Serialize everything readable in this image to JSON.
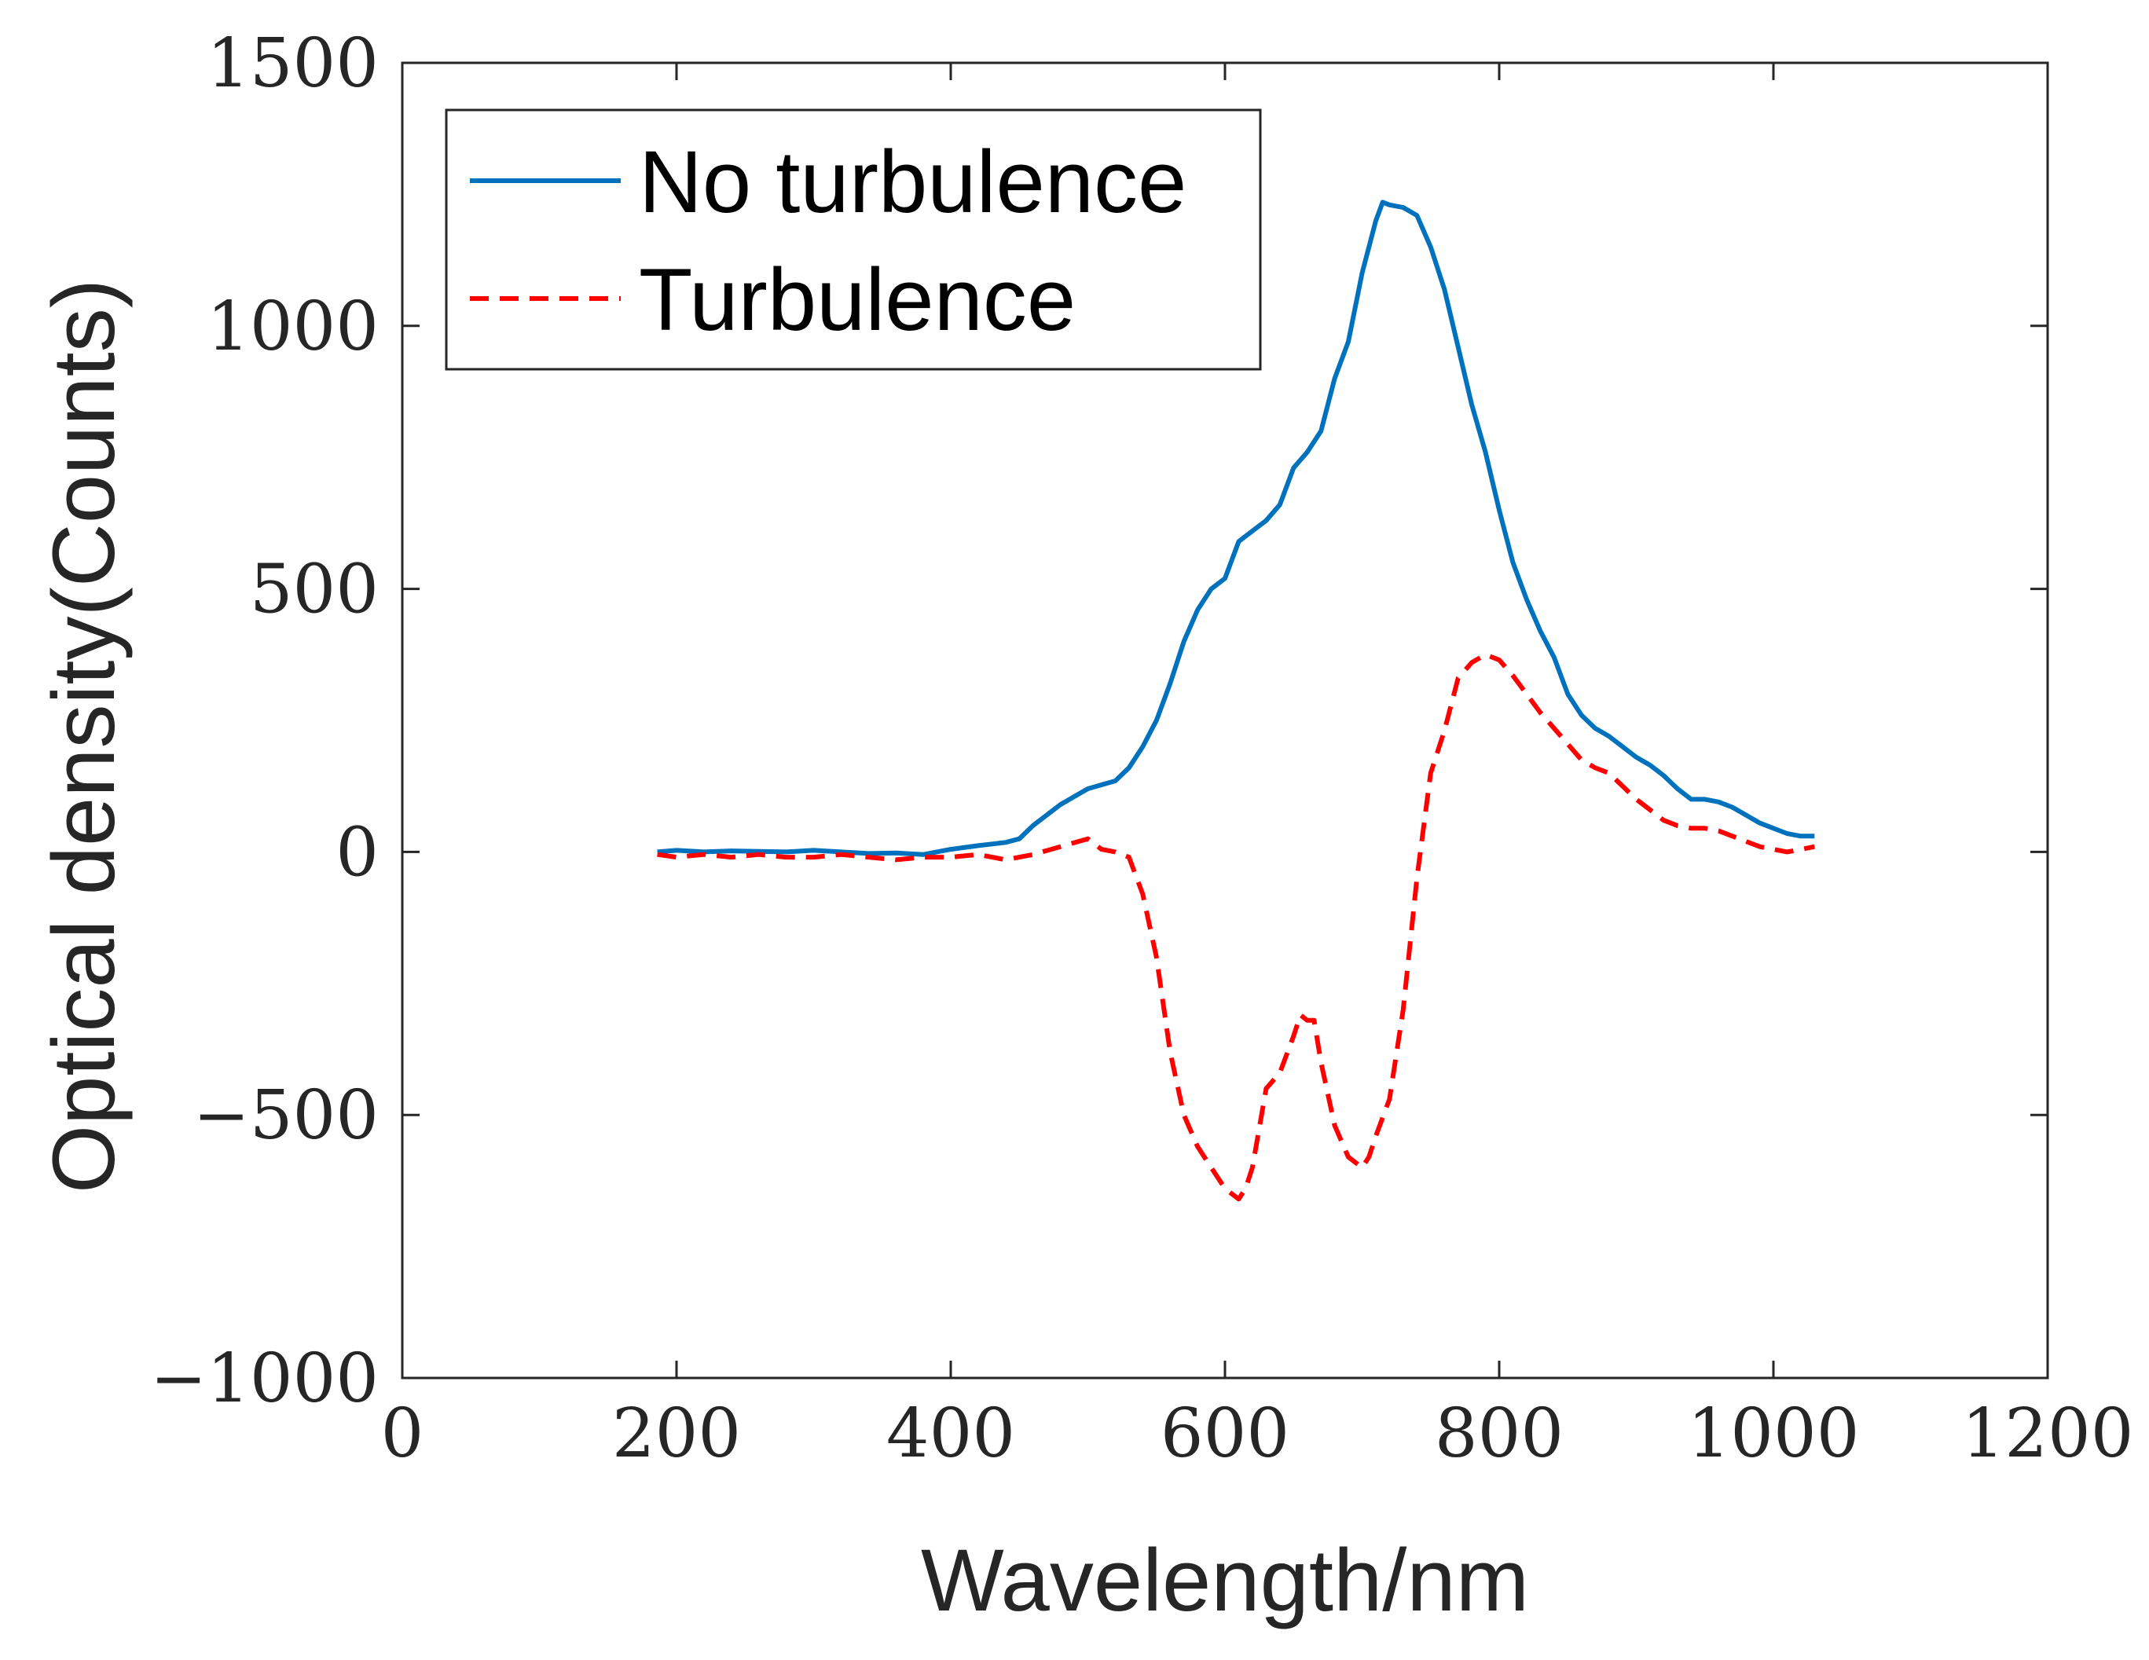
{
  "chart_data": {
    "type": "line",
    "title": "",
    "xlabel": "Wavelength/nm",
    "ylabel": "Optical density(Counts)",
    "xlim": [
      0,
      1200
    ],
    "ylim": [
      -1000,
      1500
    ],
    "xticks": [
      0,
      200,
      400,
      600,
      800,
      1000,
      1200
    ],
    "xtick_labels": [
      "0",
      "200",
      "400",
      "600",
      "800",
      "1000",
      "1200"
    ],
    "yticks": [
      -1000,
      -500,
      0,
      500,
      1000,
      1500
    ],
    "ytick_labels": [
      "−1000",
      "−500",
      "0",
      "500",
      "1000",
      "1500"
    ],
    "grid": false,
    "legend_position": "top-left",
    "series": [
      {
        "name": "No turbulence",
        "color": "#0072BD",
        "style": "solid",
        "x": [
          186,
          200,
          220,
          240,
          260,
          280,
          300,
          320,
          340,
          360,
          380,
          400,
          420,
          440,
          450,
          460,
          480,
          500,
          520,
          530,
          540,
          550,
          560,
          570,
          580,
          590,
          600,
          610,
          620,
          630,
          640,
          650,
          660,
          670,
          680,
          690,
          700,
          710,
          715,
          720,
          730,
          740,
          750,
          760,
          770,
          780,
          790,
          800,
          810,
          820,
          830,
          840,
          850,
          860,
          870,
          880,
          890,
          900,
          910,
          920,
          930,
          940,
          950,
          960,
          970,
          980,
          990,
          1000,
          1010,
          1020,
          1030
        ],
        "values": [
          0,
          3,
          0,
          2,
          1,
          0,
          3,
          0,
          -3,
          -2,
          -5,
          5,
          12,
          18,
          25,
          50,
          90,
          120,
          135,
          160,
          200,
          250,
          320,
          400,
          460,
          500,
          520,
          590,
          610,
          630,
          660,
          730,
          760,
          800,
          900,
          970,
          1100,
          1200,
          1235,
          1230,
          1225,
          1210,
          1150,
          1070,
          960,
          850,
          760,
          650,
          550,
          480,
          420,
          370,
          300,
          260,
          235,
          220,
          200,
          180,
          165,
          145,
          120,
          100,
          100,
          95,
          85,
          70,
          55,
          45,
          35,
          30,
          30
        ]
      },
      {
        "name": "Turbulence",
        "color": "#FF0000",
        "style": "dashed",
        "x": [
          186,
          200,
          220,
          240,
          260,
          280,
          300,
          320,
          340,
          360,
          380,
          400,
          420,
          440,
          460,
          480,
          500,
          510,
          520,
          530,
          540,
          550,
          560,
          570,
          580,
          590,
          600,
          610,
          615,
          620,
          630,
          640,
          650,
          655,
          660,
          665,
          670,
          680,
          690,
          700,
          705,
          710,
          720,
          730,
          740,
          750,
          760,
          770,
          780,
          790,
          800,
          810,
          820,
          830,
          840,
          850,
          860,
          870,
          880,
          890,
          900,
          910,
          920,
          930,
          940,
          950,
          960,
          970,
          980,
          990,
          1000,
          1010,
          1020,
          1030
        ],
        "values": [
          -5,
          -10,
          -5,
          -10,
          -5,
          -10,
          -10,
          -5,
          -10,
          -15,
          -10,
          -10,
          -5,
          -15,
          -5,
          10,
          25,
          5,
          0,
          -10,
          -80,
          -200,
          -380,
          -500,
          -560,
          -600,
          -640,
          -660,
          -640,
          -600,
          -450,
          -420,
          -350,
          -310,
          -320,
          -320,
          -400,
          -520,
          -580,
          -600,
          -580,
          -540,
          -470,
          -300,
          -50,
          150,
          230,
          330,
          360,
          375,
          365,
          335,
          300,
          265,
          235,
          205,
          175,
          160,
          150,
          125,
          100,
          80,
          60,
          50,
          45,
          45,
          40,
          30,
          20,
          10,
          5,
          0,
          5,
          10
        ]
      }
    ]
  }
}
